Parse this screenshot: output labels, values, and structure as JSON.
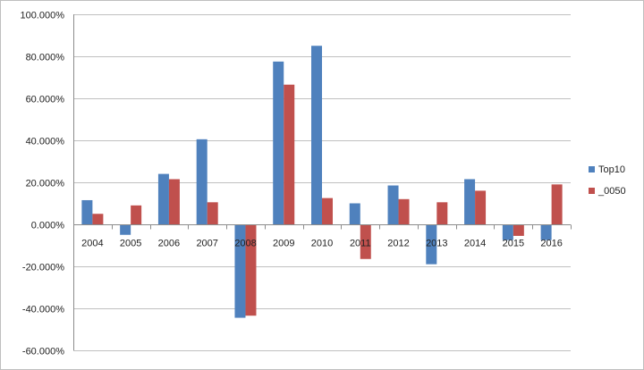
{
  "chart_data": {
    "type": "bar",
    "categories": [
      "2004",
      "2005",
      "2006",
      "2007",
      "2008",
      "2009",
      "2010",
      "2011",
      "2012",
      "2013",
      "2014",
      "2015",
      "2016"
    ],
    "series": [
      {
        "name": "Top10",
        "color": "#4f81bd",
        "values": [
          11.5,
          -5.0,
          24.0,
          40.5,
          -44.5,
          77.5,
          85.0,
          10.0,
          18.5,
          -19.0,
          21.5,
          -7.5,
          -7.5
        ]
      },
      {
        "name": "_0050",
        "color": "#c0504d",
        "values": [
          5.0,
          9.0,
          21.5,
          10.5,
          -43.5,
          66.5,
          12.5,
          -16.5,
          12.0,
          10.5,
          16.0,
          -5.5,
          19.0
        ]
      }
    ],
    "ylim": [
      -60,
      100
    ],
    "ytick_labels": [
      "100.000%",
      "80.000%",
      "60.000%",
      "40.000%",
      "20.000%",
      "0.000%",
      "-20.000%",
      "-40.000%",
      "-60.000%"
    ],
    "grid": true,
    "legend": "right",
    "title": "",
    "xlabel": "",
    "ylabel": ""
  },
  "colors": {
    "gridline": "#c0c0c0",
    "axis": "#8c8c8c",
    "border": "#bfbfbf",
    "text": "#222222"
  }
}
